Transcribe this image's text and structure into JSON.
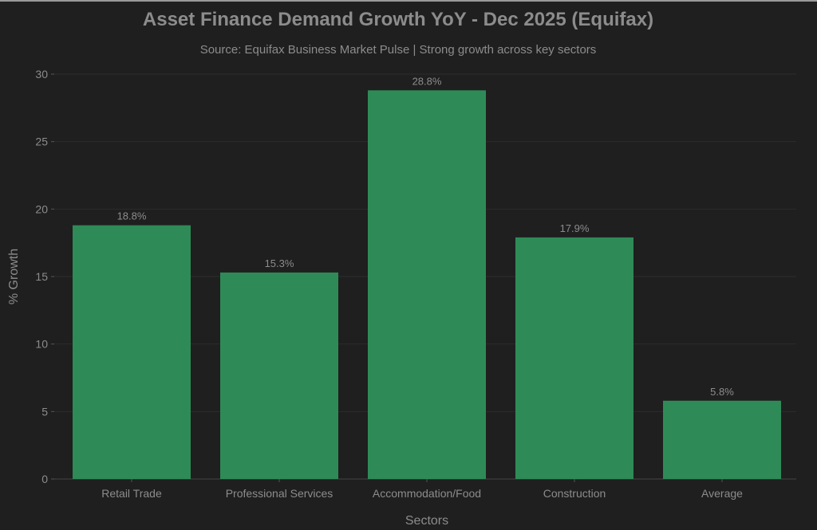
{
  "chart_data": {
    "type": "bar",
    "title": "Asset Finance Demand Growth YoY - Dec 2025 (Equifax)",
    "subtitle": "Source: Equifax Business Market Pulse | Strong growth across key sectors",
    "xlabel": "Sectors",
    "ylabel": "% Growth",
    "categories": [
      "Retail Trade",
      "Professional Services",
      "Accommodation/Food",
      "Construction",
      "Average"
    ],
    "values": [
      18.8,
      15.3,
      28.8,
      17.9,
      5.8
    ],
    "data_labels": [
      "18.8%",
      "15.3%",
      "28.8%",
      "17.9%",
      "5.8%"
    ],
    "ylim": [
      0,
      30
    ],
    "yticks": [
      0,
      5,
      10,
      15,
      20,
      25,
      30
    ],
    "grid": true,
    "bar_color": "#2e8b57",
    "background": "#1f1f1f"
  }
}
